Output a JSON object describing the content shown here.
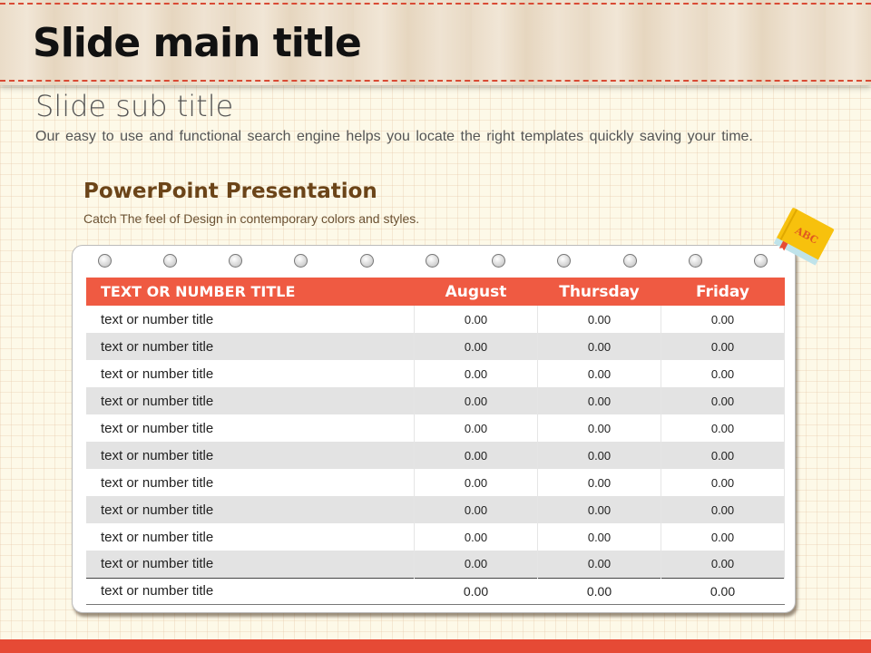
{
  "slide": {
    "title": "Slide main title",
    "subtitle": "Slide sub title",
    "description": "Our easy to use and functional search engine helps you locate the right templates quickly saving your time."
  },
  "section": {
    "title": "PowerPoint Presentation",
    "description": "Catch The feel of Design in contemporary colors and styles."
  },
  "decoration": {
    "book_icon": "abc-book-icon",
    "book_text": "ABC"
  },
  "colors": {
    "accent": "#ef5a42",
    "section_title": "#6b4418",
    "footer": "#e64a35"
  },
  "table": {
    "headers": [
      "TEXT OR NUMBER TITLE",
      "August",
      "Thursday",
      "Friday"
    ],
    "rows": [
      [
        "text or number title",
        "0.00",
        "0.00",
        "0.00"
      ],
      [
        "text or number title",
        "0.00",
        "0.00",
        "0.00"
      ],
      [
        "text or number title",
        "0.00",
        "0.00",
        "0.00"
      ],
      [
        "text or number title",
        "0.00",
        "0.00",
        "0.00"
      ],
      [
        "text or number title",
        "0.00",
        "0.00",
        "0.00"
      ],
      [
        "text or number title",
        "0.00",
        "0.00",
        "0.00"
      ],
      [
        "text or number title",
        "0.00",
        "0.00",
        "0.00"
      ],
      [
        "text or number title",
        "0.00",
        "0.00",
        "0.00"
      ],
      [
        "text or number title",
        "0.00",
        "0.00",
        "0.00"
      ],
      [
        "text or number title",
        "0.00",
        "0.00",
        "0.00"
      ]
    ],
    "footer_row": [
      "text or number title",
      "0.00",
      "0.00",
      "0.00"
    ]
  }
}
